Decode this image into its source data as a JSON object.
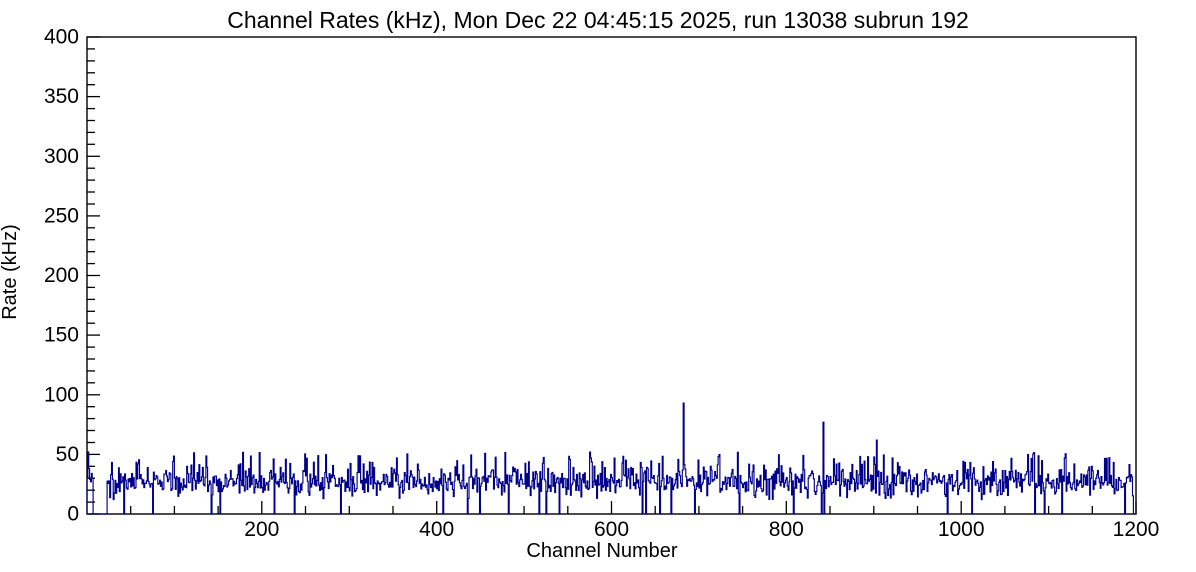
{
  "window": {
    "background": "#ffffff",
    "foreground": "#000000"
  },
  "chart_data": {
    "type": "bar",
    "style": "step-histogram-outline",
    "title": "Channel Rates (kHz), Mon Dec 22 04:45:15 2025, run 13038 subrun 192",
    "xlabel": "Channel Number",
    "ylabel": "Rate (kHz)",
    "xlim": [
      0,
      1200
    ],
    "ylim": [
      0,
      400
    ],
    "x_major_ticks": [
      200,
      400,
      600,
      800,
      1000,
      1200
    ],
    "x_minor_step": 50,
    "y_major_ticks": [
      0,
      50,
      100,
      150,
      200,
      250,
      300,
      350,
      400
    ],
    "y_minor_step": 10,
    "grid": false,
    "legend": false,
    "line_color": "#00008b",
    "n_channels": 1200,
    "bin_width": 1,
    "baseline": {
      "mean": 27,
      "spread": 12,
      "typical_range": [
        15,
        40
      ]
    },
    "spikes": {
      "probability": 0.07,
      "range": [
        40,
        52
      ]
    },
    "zero_bin_probability": 0.025,
    "dead_regions": [
      [
        7,
        22
      ],
      [
        1197,
        1199
      ]
    ],
    "head_values": [
      30,
      52,
      38,
      29,
      27,
      34,
      30
    ],
    "notable_peaks": [
      {
        "channel": 682,
        "value": 93
      },
      {
        "channel": 842,
        "value": 77
      },
      {
        "channel": 903,
        "value": 62
      }
    ],
    "seed": 13038
  }
}
